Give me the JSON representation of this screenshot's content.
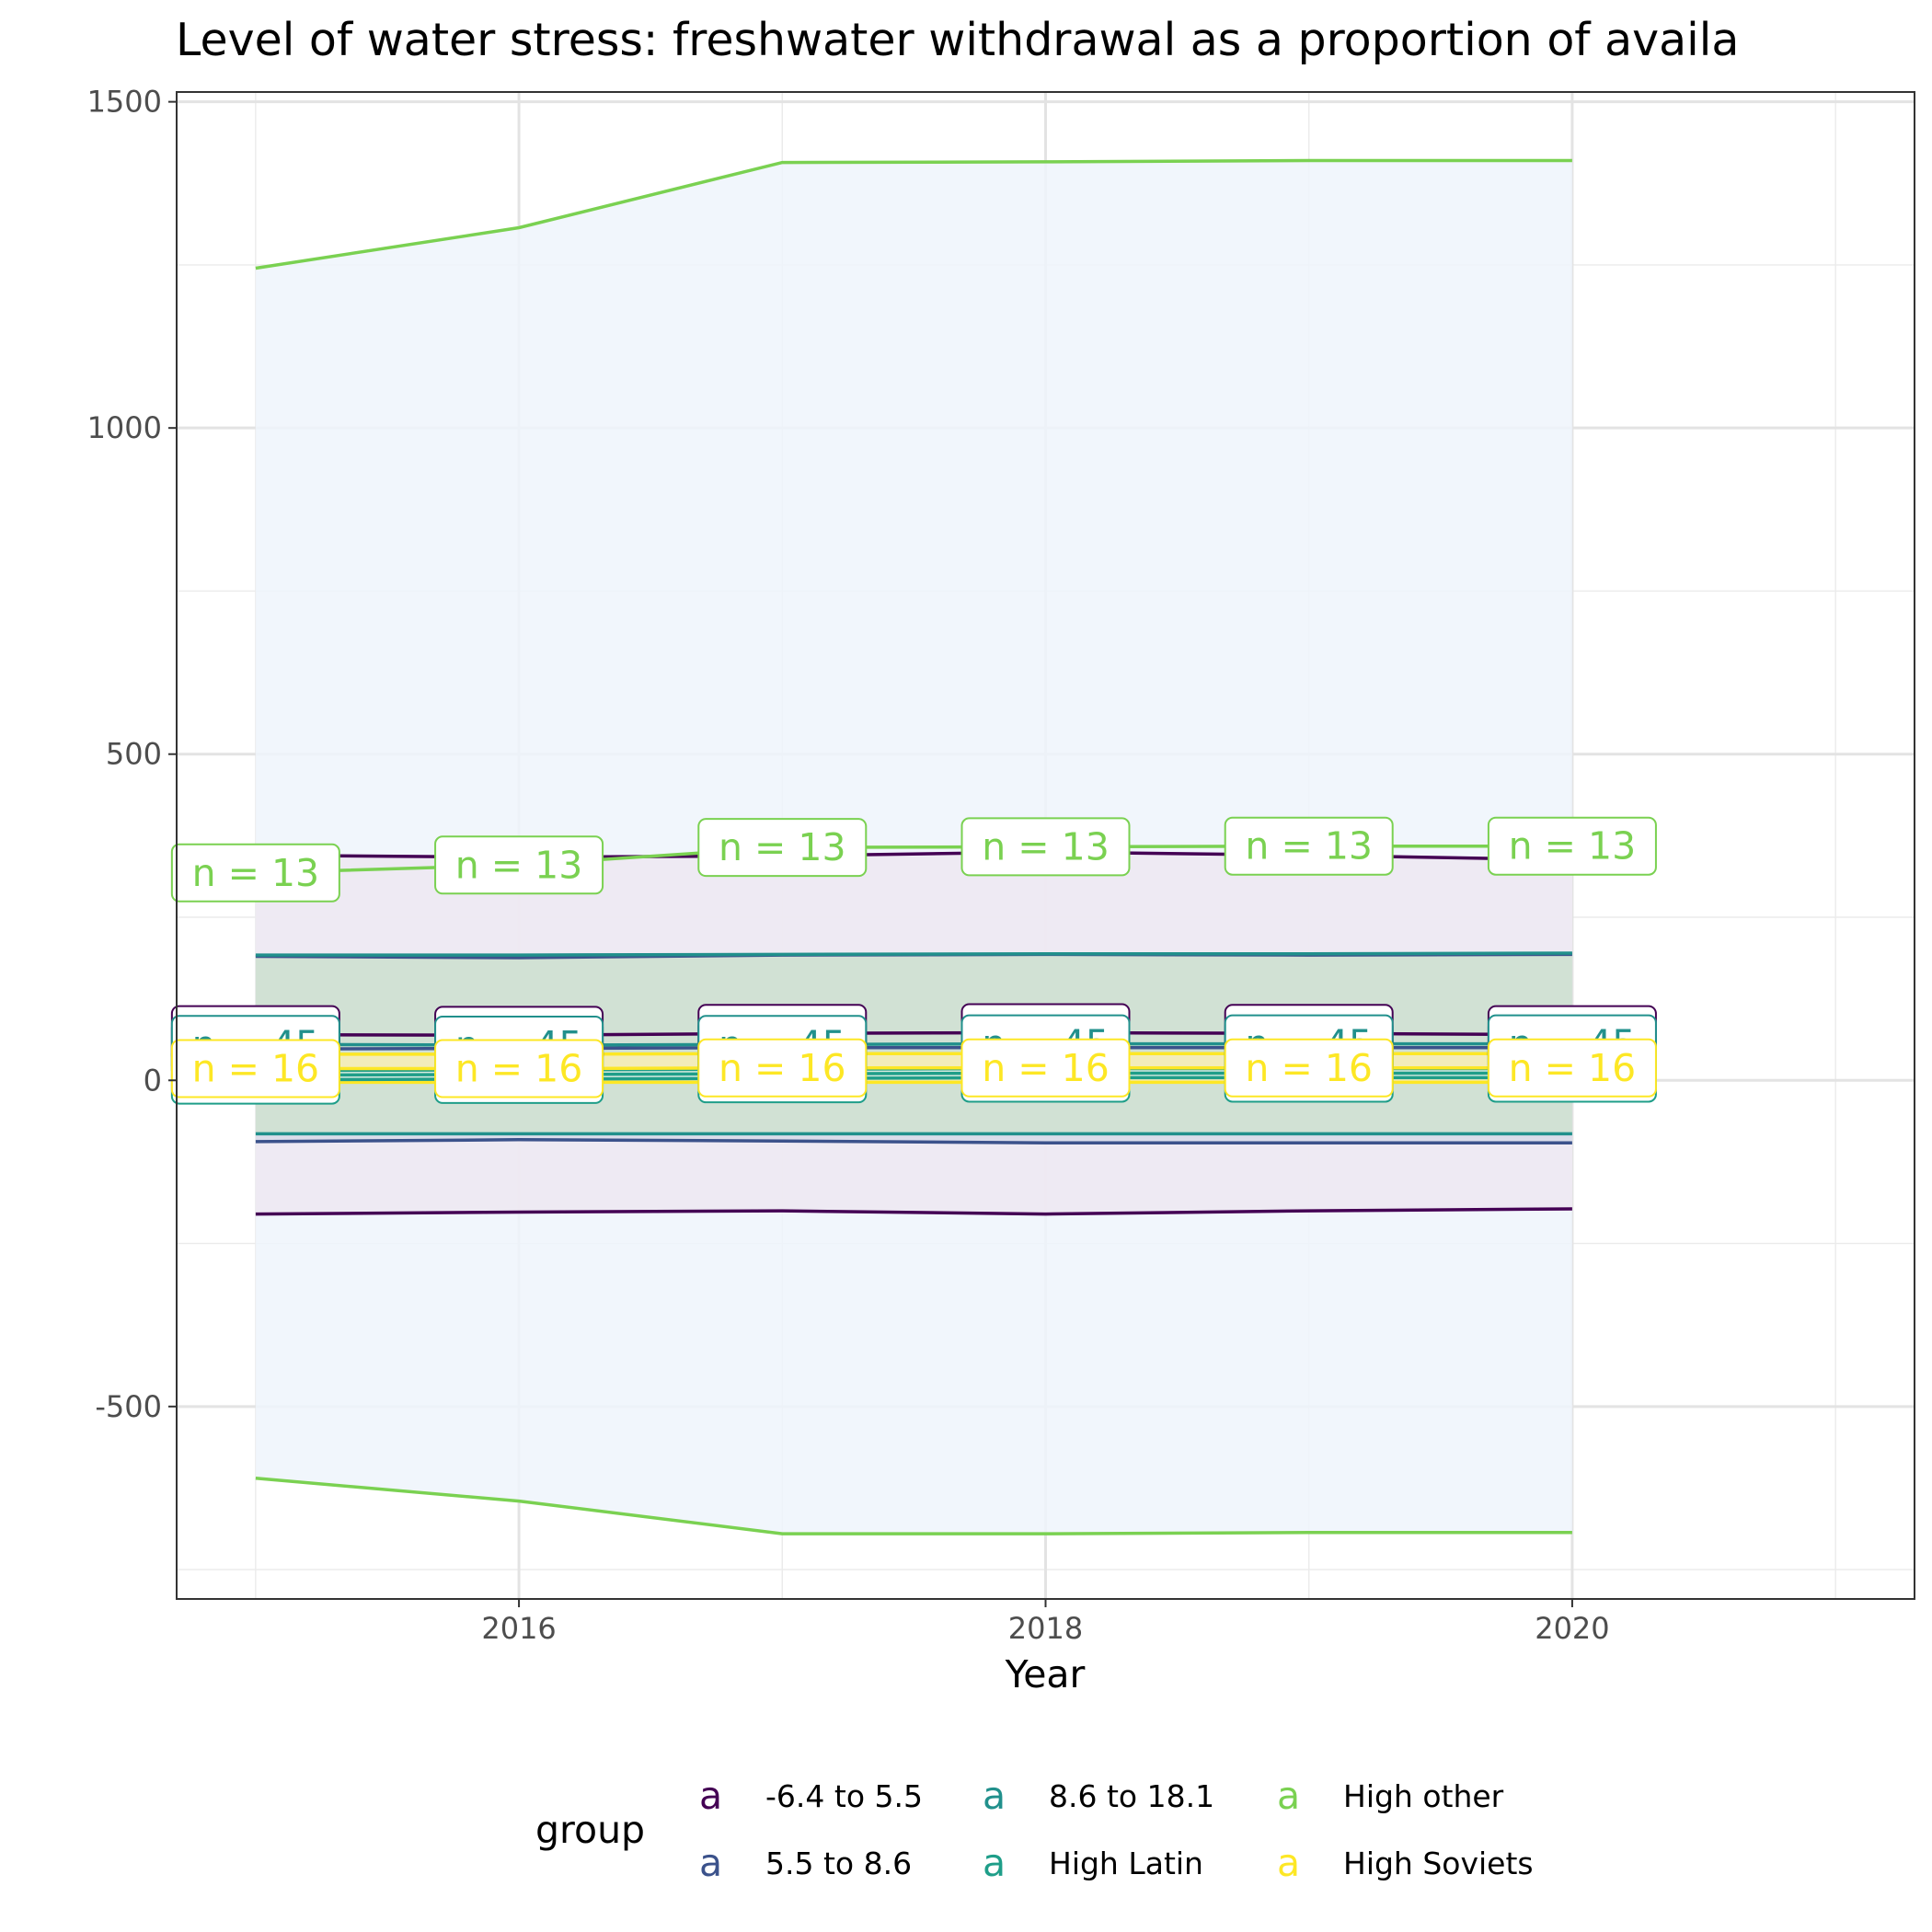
{
  "chart_data": {
    "type": "line",
    "title": "Level of water stress: freshwater withdrawal as a proportion of availa",
    "xlabel": "Year",
    "ylabel": "",
    "xlim": [
      2014.7,
      2021.3
    ],
    "ylim": [
      -795,
      1515
    ],
    "x_ticks": [
      2016,
      2018,
      2020
    ],
    "y_ticks": [
      -500,
      0,
      500,
      1000,
      1500
    ],
    "x_ticks_minor": [
      2015,
      2017,
      2019,
      2021
    ],
    "y_ticks_minor": [
      -750,
      -250,
      250,
      750,
      1250
    ],
    "x": [
      2015,
      2016,
      2017,
      2018,
      2019,
      2020
    ],
    "grid": true,
    "legend": {
      "title": "group",
      "position": "bottom",
      "key_glyph": "a"
    },
    "series": [
      {
        "name": "-6.4 to 5.5",
        "color": "#440154",
        "band_fill": "#ede7f1",
        "mean": [
          70,
          69,
          72,
          73,
          72,
          70
        ],
        "upper": [
          345,
          342,
          344,
          350,
          345,
          338
        ],
        "lower": [
          -205,
          -202,
          -200,
          -205,
          -200,
          -197
        ],
        "label_text": "n = 45",
        "label_y": [
          70,
          69,
          72,
          73,
          72,
          70
        ]
      },
      {
        "name": "5.5 to 8.6",
        "color": "#3b528b",
        "band_fill": "#d6dbe7",
        "mean": [
          48,
          49,
          50,
          50,
          50,
          50
        ],
        "upper": [
          190,
          188,
          192,
          193,
          192,
          193
        ],
        "lower": [
          -94,
          -91,
          -93,
          -96,
          -96,
          -96
        ],
        "label_text": "n = 45",
        "label_y": [
          48,
          49,
          50,
          50,
          50,
          50
        ]
      },
      {
        "name": "8.6 to 18.1",
        "color": "#21908c",
        "band_fill": "#cfe2d0",
        "mean": [
          55,
          54,
          55,
          56,
          56,
          56
        ],
        "upper": [
          192,
          192,
          193,
          194,
          194,
          195
        ],
        "lower": [
          -82,
          -82,
          -82,
          -82,
          -82,
          -82
        ],
        "label_text": "n = 45",
        "label_y": [
          55,
          54,
          55,
          56,
          56,
          56
        ]
      },
      {
        "name": "High Latin",
        "color": "#1f9e89",
        "band_fill": "#d3ece7",
        "mean": [
          8,
          9,
          10,
          11,
          11,
          11
        ],
        "upper": [
          15,
          16,
          17,
          18,
          18,
          18
        ],
        "lower": [
          1,
          2,
          3,
          4,
          4,
          4
        ],
        "label_text": "n = 45",
        "label_y": [
          8,
          9,
          10,
          11,
          11,
          11
        ]
      },
      {
        "name": "High other",
        "color": "#7ad151",
        "band_fill": "#eef4fc",
        "mean": [
          318,
          330,
          357,
          358,
          359,
          359
        ],
        "upper": [
          1245,
          1307,
          1407,
          1408,
          1410,
          1410
        ],
        "lower": [
          -610,
          -645,
          -695,
          -695,
          -693,
          -693
        ],
        "label_text": "n = 13",
        "label_y": [
          318,
          330,
          357,
          358,
          359,
          359
        ]
      },
      {
        "name": "High Soviets",
        "color": "#fde725",
        "band_fill": "#f8edb5",
        "mean": [
          18,
          18,
          19,
          19,
          19,
          19
        ],
        "upper": [
          40,
          40,
          41,
          41,
          41,
          41
        ],
        "lower": [
          -3,
          -3,
          -3,
          -3,
          -3,
          -3
        ],
        "label_text": "n = 16",
        "label_y": [
          18,
          18,
          19,
          19,
          19,
          19
        ]
      }
    ]
  }
}
